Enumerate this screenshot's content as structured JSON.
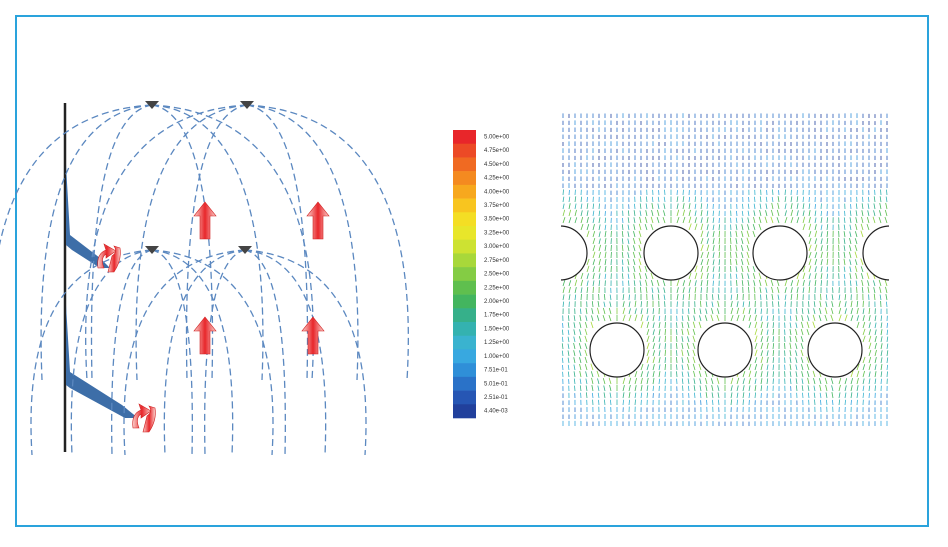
{
  "colorbar": {
    "labels": [
      "5.00e+00",
      "4.75e+00",
      "4.50e+00",
      "4.25e+00",
      "4.00e+00",
      "3.75e+00",
      "3.50e+00",
      "3.25e+00",
      "3.00e+00",
      "2.75e+00",
      "2.50e+00",
      "2.25e+00",
      "2.00e+00",
      "1.75e+00",
      "1.50e+00",
      "1.25e+00",
      "1.00e+00",
      "7.51e-01",
      "5.01e-01",
      "2.51e-01",
      "4.40e-03"
    ],
    "colors": [
      "#e8262a",
      "#ec4a26",
      "#f06a22",
      "#f48a20",
      "#f7a81e",
      "#f8c51f",
      "#f4de24",
      "#e8e62a",
      "#cde232",
      "#a8d83a",
      "#84cc44",
      "#5fbf4e",
      "#43b55f",
      "#36b08a",
      "#34b2b0",
      "#3ab3cf",
      "#38a8e0",
      "#2f8fd8",
      "#2a72c8",
      "#2656b4",
      "#21409c"
    ]
  }
}
